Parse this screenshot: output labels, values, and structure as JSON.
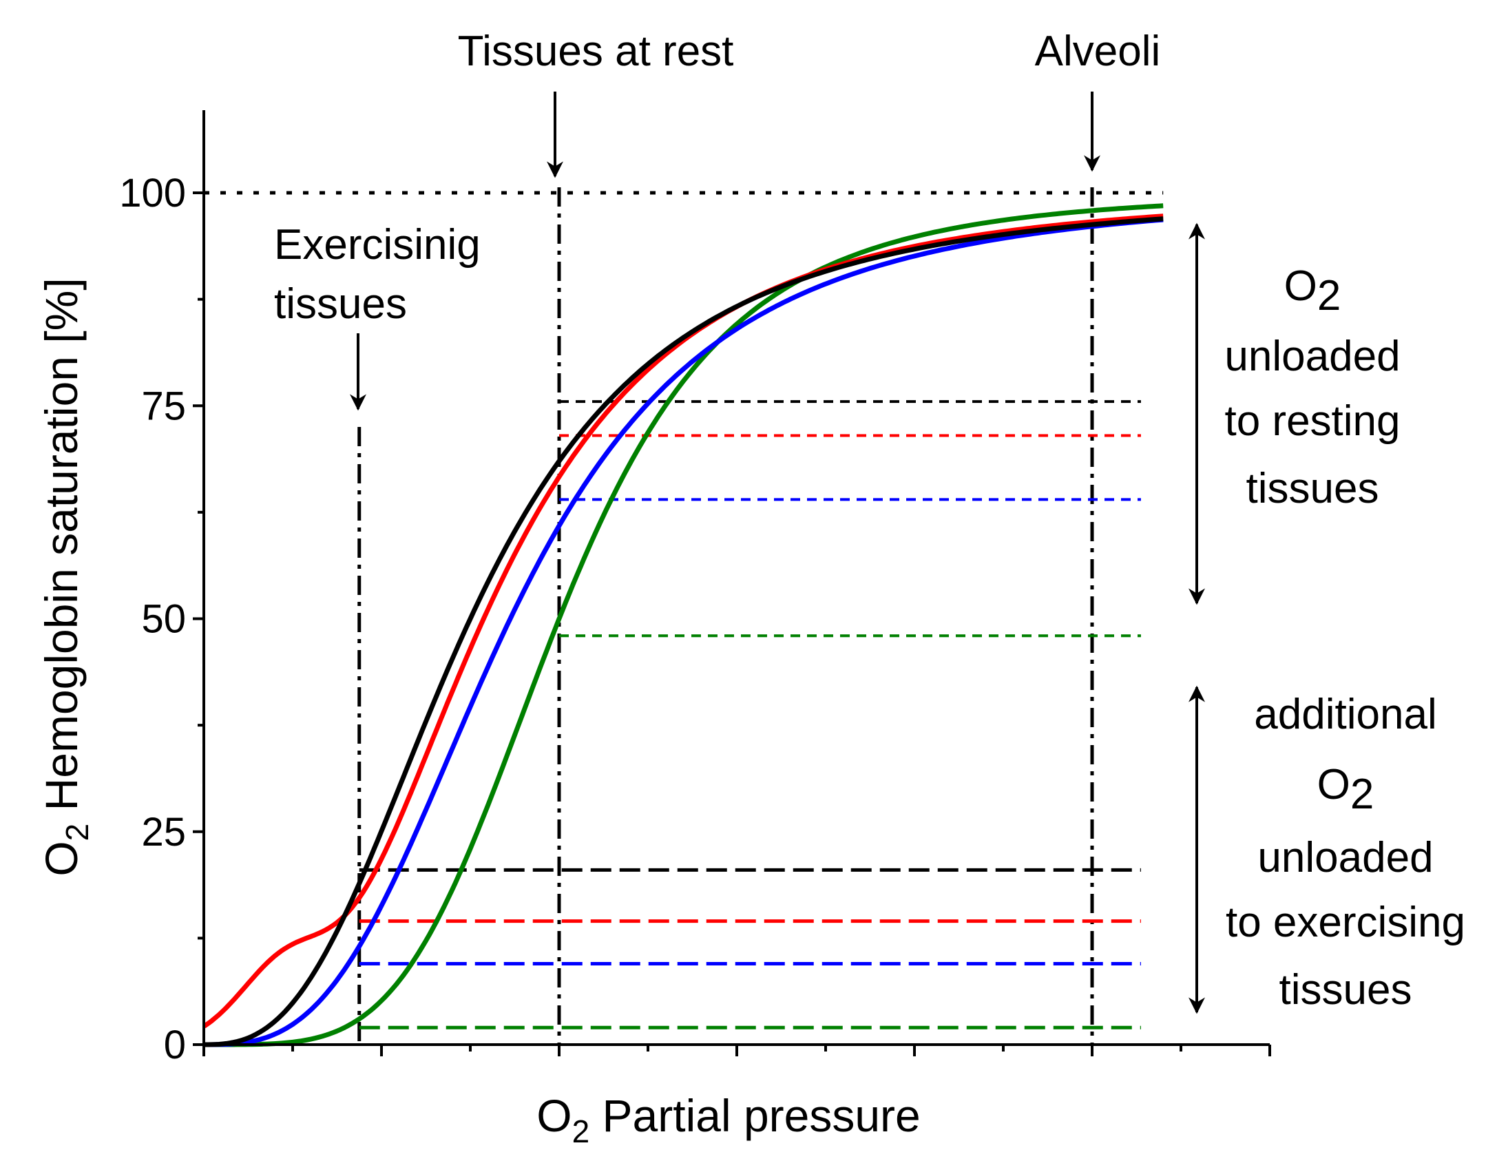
{
  "chart_data": {
    "type": "line",
    "title": "",
    "xlabel_main": "O",
    "xlabel_sub": "2",
    "xlabel_rest": " Partial pressure",
    "ylabel_main": "O",
    "ylabel_sub": "2",
    "ylabel_rest": " Hemoglobin saturation [%]",
    "ylim": [
      0,
      110
    ],
    "xlim": [
      0,
      12
    ],
    "yticks": [
      0,
      25,
      50,
      75,
      100
    ],
    "ytick_labels": [
      "0",
      "25",
      "50",
      "75",
      "100"
    ],
    "y_minor_ticks": [
      12.5,
      37.5,
      62.5,
      87.5
    ],
    "xticks": [
      0,
      2,
      4,
      6,
      8,
      10,
      12
    ],
    "x_minor_ticks": [
      1,
      3,
      5,
      7,
      9,
      11
    ],
    "series": [
      {
        "name": "black",
        "color": "#000000",
        "p50": 3.0,
        "n": 2.7,
        "sat_rest": 75.5,
        "sat_exercise": 20.5
      },
      {
        "name": "red",
        "color": "#ff0000",
        "p50": 3.15,
        "n": 2.9,
        "sat_rest": 71.5,
        "sat_exercise": 14.5,
        "low_bump": true
      },
      {
        "name": "blue",
        "color": "#0000ff",
        "p50": 3.45,
        "n": 3.0,
        "sat_rest": 64.0,
        "sat_exercise": 9.5
      },
      {
        "name": "green",
        "color": "#008000",
        "p50": 4.0,
        "n": 4.2,
        "sat_rest": 48.0,
        "sat_exercise": 2.0
      }
    ],
    "reference_lines": {
      "saturation_100": 100,
      "exercising_x": 1.75,
      "rest_x": 4.0,
      "alveoli_x": 10.0,
      "dashed_line_end_x": 10.55
    },
    "annotations": {
      "tissues_at_rest": "Tissues at rest",
      "alveoli": "Alveoli",
      "exercising_line1": "Exercisinig",
      "exercising_line2": "tissues",
      "resting_o": "O",
      "resting_sub": "2",
      "resting_line2": "unloaded",
      "resting_line3": "to resting",
      "resting_line4": "tissues",
      "exercise_line1": "additional",
      "exercise_o": "O",
      "exercise_sub": "2",
      "exercise_line3": "unloaded",
      "exercise_line4": "to exercising",
      "exercise_line5": "tissues"
    }
  }
}
